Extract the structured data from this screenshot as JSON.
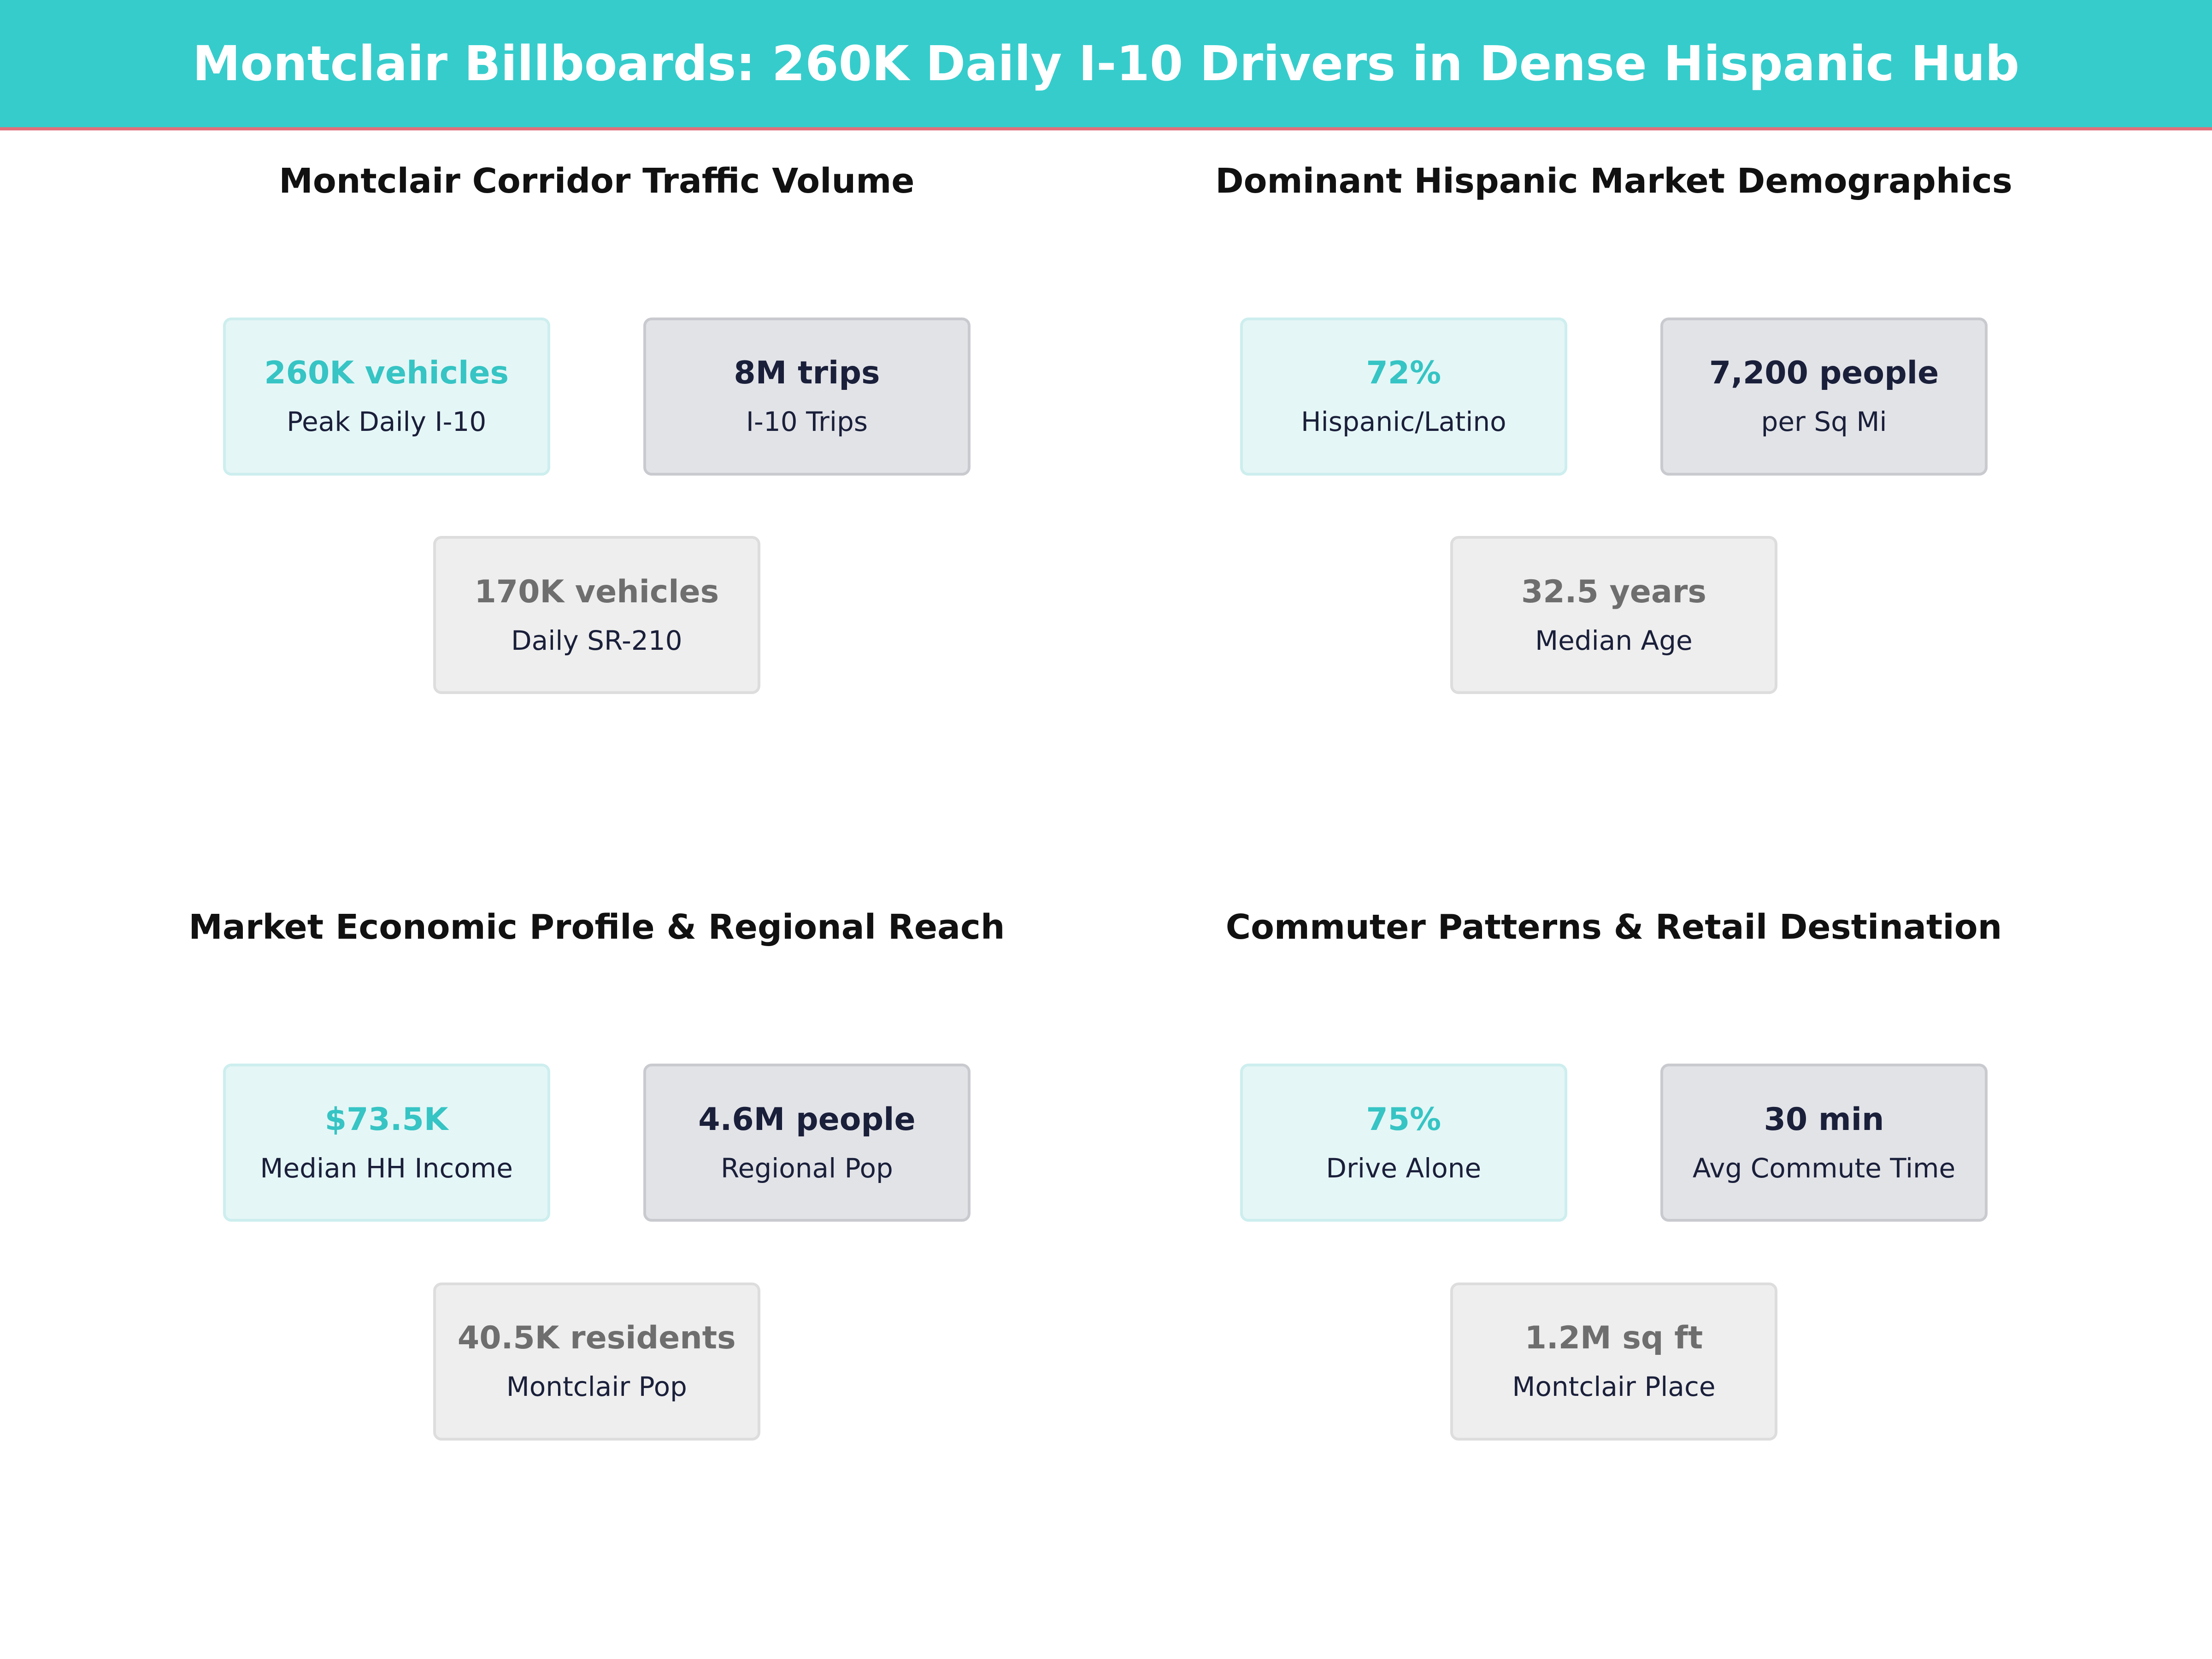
{
  "header": {
    "title": "Montclair Billboards: 260K Daily I-10 Drivers in Dense Hispanic Hub"
  },
  "panels": [
    {
      "title": "Montclair Corridor Traffic Volume",
      "cards": [
        {
          "value": "260K vehicles",
          "label": "Peak Daily I-10"
        },
        {
          "value": "8M trips",
          "label": "I-10 Trips"
        },
        {
          "value": "170K vehicles",
          "label": "Daily SR-210"
        }
      ]
    },
    {
      "title": "Dominant Hispanic Market Demographics",
      "cards": [
        {
          "value": "72%",
          "label": "Hispanic/Latino"
        },
        {
          "value": "7,200 people",
          "label": "per Sq Mi"
        },
        {
          "value": "32.5 years",
          "label": "Median Age"
        }
      ]
    },
    {
      "title": "Market Economic Profile & Regional Reach",
      "cards": [
        {
          "value": "$73.5K",
          "label": "Median HH Income"
        },
        {
          "value": "4.6M people",
          "label": "Regional Pop"
        },
        {
          "value": "40.5K residents",
          "label": "Montclair Pop"
        }
      ]
    },
    {
      "title": "Commuter Patterns & Retail Destination",
      "cards": [
        {
          "value": "75%",
          "label": "Drive Alone"
        },
        {
          "value": "30 min",
          "label": "Avg Commute Time"
        },
        {
          "value": "1.2M sq ft",
          "label": "Montclair Place"
        }
      ]
    }
  ]
}
